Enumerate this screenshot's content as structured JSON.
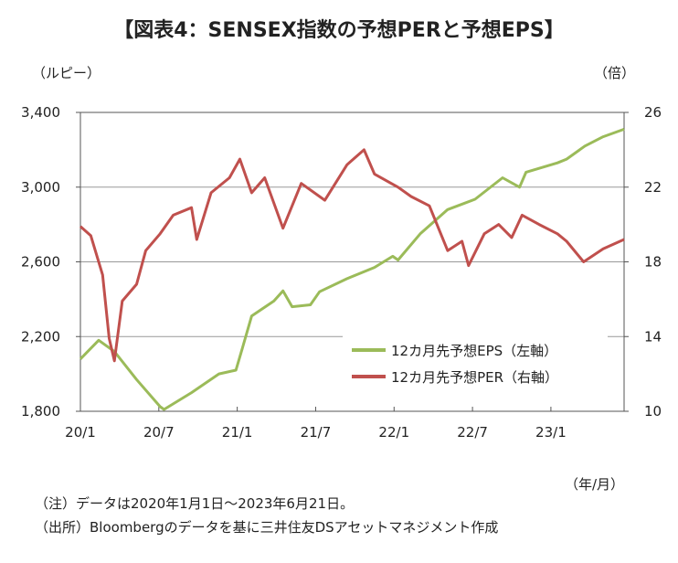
{
  "chart_data": {
    "type": "line",
    "title": "【図表4：SENSEX指数の予想PERと予想EPS】",
    "ylabel_left": "（ルピー）",
    "ylabel_right": "（倍）",
    "xlabel": "（年/月）",
    "x_unit": "months since 2020/1",
    "x_ticks": [
      "20/1",
      "20/7",
      "21/1",
      "21/7",
      "22/1",
      "22/7",
      "23/1"
    ],
    "y_left_ticks": [
      "1,800",
      "2,200",
      "2,600",
      "3,000",
      "3,400"
    ],
    "y_right_ticks": [
      "10",
      "14",
      "18",
      "22",
      "26"
    ],
    "ylim_left": [
      1800,
      3400
    ],
    "ylim_right": [
      10,
      26
    ],
    "xlim": [
      0,
      41.6
    ],
    "grid": true,
    "legend_position": "bottom-right",
    "series": [
      {
        "name": "12カ月先予想EPS（左軸）",
        "axis": "left",
        "color": "#9bbb59",
        "points": [
          [
            0,
            2080
          ],
          [
            1.4,
            2180
          ],
          [
            2.6,
            2120
          ],
          [
            4.3,
            1970
          ],
          [
            6.1,
            1825
          ],
          [
            6.4,
            1810
          ],
          [
            8.5,
            1900
          ],
          [
            10.6,
            2000
          ],
          [
            11.9,
            2020
          ],
          [
            12.4,
            2140
          ],
          [
            13.1,
            2310
          ],
          [
            14.8,
            2390
          ],
          [
            15.5,
            2445
          ],
          [
            16.2,
            2360
          ],
          [
            17.6,
            2370
          ],
          [
            18.3,
            2440
          ],
          [
            20.4,
            2510
          ],
          [
            22.5,
            2570
          ],
          [
            23.9,
            2630
          ],
          [
            24.3,
            2610
          ],
          [
            26,
            2750
          ],
          [
            28.1,
            2880
          ],
          [
            30.2,
            2935
          ],
          [
            32.3,
            3050
          ],
          [
            33.6,
            3000
          ],
          [
            34.1,
            3080
          ],
          [
            36.5,
            3130
          ],
          [
            37.2,
            3150
          ],
          [
            38.6,
            3220
          ],
          [
            40,
            3270
          ],
          [
            41.6,
            3310
          ]
        ]
      },
      {
        "name": "12カ月先予想PER（右軸）",
        "axis": "right",
        "color": "#c0504d",
        "points": [
          [
            0,
            19.9
          ],
          [
            0.8,
            19.4
          ],
          [
            1.7,
            17.3
          ],
          [
            2.2,
            13.9
          ],
          [
            2.6,
            12.7
          ],
          [
            3.2,
            15.9
          ],
          [
            4.3,
            16.8
          ],
          [
            5,
            18.6
          ],
          [
            6.1,
            19.5
          ],
          [
            7.1,
            20.5
          ],
          [
            8.5,
            20.9
          ],
          [
            8.9,
            19.2
          ],
          [
            10,
            21.7
          ],
          [
            11.4,
            22.5
          ],
          [
            12.2,
            23.5
          ],
          [
            13.1,
            21.7
          ],
          [
            14.1,
            22.5
          ],
          [
            15.5,
            19.8
          ],
          [
            16.9,
            22.2
          ],
          [
            18.7,
            21.3
          ],
          [
            20.4,
            23.2
          ],
          [
            21.7,
            24
          ],
          [
            22.5,
            22.7
          ],
          [
            24.3,
            22
          ],
          [
            25.3,
            21.5
          ],
          [
            26.7,
            21
          ],
          [
            28.1,
            18.6
          ],
          [
            29.2,
            19.1
          ],
          [
            29.7,
            17.8
          ],
          [
            30.9,
            19.5
          ],
          [
            32,
            20
          ],
          [
            33,
            19.3
          ],
          [
            33.8,
            20.5
          ],
          [
            35.1,
            20
          ],
          [
            36.5,
            19.5
          ],
          [
            37.2,
            19.1
          ],
          [
            38.5,
            18
          ],
          [
            40,
            18.7
          ],
          [
            41.6,
            19.2
          ]
        ]
      }
    ],
    "notes": [
      "（注）データは2020年1月1日～2023年6月21日。",
      "（出所）Bloombergのデータを基に三井住友DSアセットマネジメント作成"
    ]
  }
}
